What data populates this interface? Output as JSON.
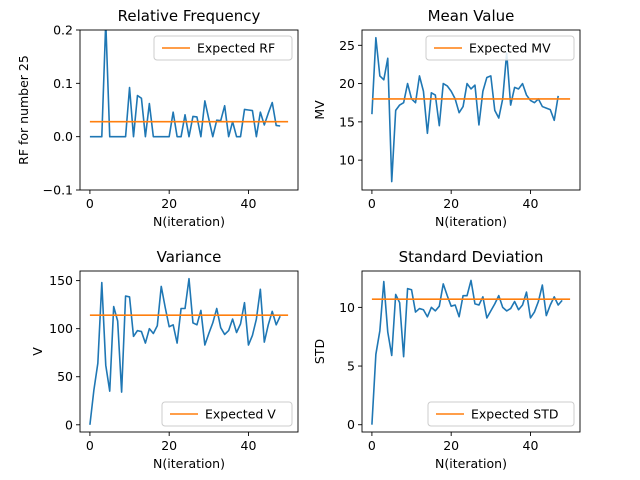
{
  "colors": {
    "series": "#1f77b4",
    "expected": "#ff7f0e"
  },
  "chart_data": [
    {
      "type": "line",
      "title": "Relative Frequency",
      "xlabel": "N(iteration)",
      "ylabel": "RF for number 25",
      "xlim": [
        -2.5,
        52.5
      ],
      "ylim": [
        -0.1,
        0.2
      ],
      "xticks": [
        0,
        20,
        40
      ],
      "yticks": [
        -0.1,
        0.0,
        0.1,
        0.2
      ],
      "ytick_labels": [
        "−0.1",
        "0.0",
        "0.1",
        "0.2"
      ],
      "legend": {
        "label": "Expected RF",
        "position": "top-right"
      },
      "expected": {
        "x": [
          0,
          50
        ],
        "y": [
          0.028,
          0.028
        ]
      },
      "series": [
        {
          "values": [
            0.0,
            0.0,
            0.0,
            0.0,
            0.215,
            0.0,
            0.0,
            0.0,
            0.0,
            0.0,
            0.092,
            0.0,
            0.077,
            0.072,
            0.0,
            0.062,
            0.0,
            0.0,
            0.0,
            0.0,
            0.0,
            0.046,
            0.0,
            0.0,
            0.041,
            0.0,
            0.038,
            0.037,
            0.0,
            0.067,
            0.033,
            0.0,
            0.031,
            0.03,
            0.058,
            0.0,
            0.028,
            0.0,
            0.0,
            0.051,
            0.05,
            0.049,
            0.0,
            0.046,
            0.022,
            0.044,
            0.064,
            0.021,
            0.02
          ]
        }
      ]
    },
    {
      "type": "line",
      "title": "Mean Value",
      "xlabel": "N(iteration)",
      "ylabel": "MV",
      "xlim": [
        -2.5,
        52.5
      ],
      "ylim": [
        6.1,
        27.0
      ],
      "xticks": [
        0,
        20,
        40
      ],
      "yticks": [
        10,
        15,
        20,
        25
      ],
      "ytick_labels": [
        "10",
        "15",
        "20",
        "25"
      ],
      "legend": {
        "label": "Expected MV",
        "position": "top-right"
      },
      "expected": {
        "x": [
          0,
          50
        ],
        "y": [
          18.0,
          18.0
        ]
      },
      "series": [
        {
          "values": [
            16.0,
            26.0,
            21.0,
            20.5,
            23.3,
            7.2,
            16.5,
            17.2,
            17.5,
            20.0,
            18.0,
            17.5,
            21.0,
            19.0,
            13.5,
            18.8,
            18.5,
            14.5,
            20.0,
            19.7,
            19.0,
            18.0,
            16.2,
            17.0,
            20.0,
            19.3,
            19.8,
            14.6,
            19.0,
            20.8,
            21.0,
            16.5,
            15.5,
            18.0,
            24.0,
            17.2,
            19.5,
            19.3,
            20.0,
            18.5,
            17.8,
            17.5,
            18.0,
            17.0,
            16.8,
            16.6,
            15.2,
            18.4
          ]
        }
      ]
    },
    {
      "type": "line",
      "title": "Variance",
      "xlabel": "N(iteration)",
      "ylabel": "V",
      "xlim": [
        -2.5,
        52.5
      ],
      "ylim": [
        -7.5,
        160.0
      ],
      "xticks": [
        0,
        20,
        40
      ],
      "yticks": [
        0,
        50,
        100,
        150
      ],
      "ytick_labels": [
        "0",
        "50",
        "100",
        "150"
      ],
      "legend": {
        "label": "Expected V",
        "position": "bottom-right"
      },
      "expected": {
        "x": [
          0,
          50
        ],
        "y": [
          114.0,
          114.0
        ]
      },
      "series": [
        {
          "values": [
            0.0,
            36.0,
            64.0,
            148.0,
            62.0,
            35.0,
            123.0,
            108.0,
            34.0,
            134.0,
            133.0,
            92.0,
            98.0,
            97.0,
            85.0,
            100.0,
            95.0,
            103.0,
            144.0,
            122.0,
            102.0,
            104.0,
            85.0,
            121.0,
            121.0,
            152.0,
            106.0,
            104.0,
            119.0,
            83.0,
            95.0,
            106.0,
            121.0,
            101.0,
            94.0,
            98.0,
            110.0,
            96.0,
            105.0,
            127.0,
            83.0,
            93.0,
            110.0,
            141.0,
            86.0,
            104.0,
            118.0,
            104.0,
            113.0
          ]
        }
      ]
    },
    {
      "type": "line",
      "title": "Standard Deviation",
      "xlabel": "N(iteration)",
      "ylabel": "STD",
      "xlim": [
        -2.5,
        52.5
      ],
      "ylim": [
        -0.62,
        13.1
      ],
      "xticks": [
        0,
        20,
        40
      ],
      "yticks": [
        0,
        5,
        10
      ],
      "ytick_labels": [
        "0",
        "5",
        "10"
      ],
      "legend": {
        "label": "Expected STD",
        "position": "bottom-right"
      },
      "expected": {
        "x": [
          0,
          50
        ],
        "y": [
          10.7,
          10.7
        ]
      },
      "series": [
        {
          "values": [
            0.0,
            6.0,
            8.0,
            12.2,
            7.9,
            5.9,
            11.1,
            10.4,
            5.8,
            11.6,
            11.5,
            9.6,
            9.9,
            9.8,
            9.2,
            10.0,
            9.7,
            10.1,
            12.0,
            11.0,
            10.1,
            10.2,
            9.2,
            11.0,
            11.0,
            12.3,
            10.3,
            10.2,
            10.9,
            9.1,
            9.7,
            10.3,
            11.0,
            10.0,
            9.7,
            9.9,
            10.5,
            9.8,
            10.2,
            11.3,
            9.1,
            9.6,
            10.5,
            11.9,
            9.3,
            10.2,
            10.9,
            10.2,
            10.6
          ]
        }
      ]
    }
  ]
}
